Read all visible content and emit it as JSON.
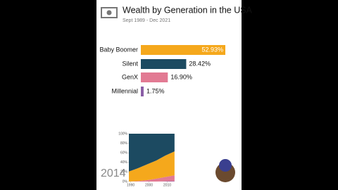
{
  "header": {
    "title": "Wealth by Generation in the USA",
    "subtitle": "Sept 1989 - Dec 2021"
  },
  "year": "2014",
  "chart_data": [
    {
      "type": "hbar",
      "categories": [
        "Baby Boomer",
        "Silent",
        "GenX",
        "Millennial"
      ],
      "values": [
        52.93,
        28.42,
        16.9,
        1.75
      ],
      "value_labels": [
        "52.93%",
        "28.42%",
        "16.90%",
        "1.75%"
      ],
      "colors": [
        "#f5a81c",
        "#1c4a61",
        "#e27a93",
        "#8a5ea6"
      ]
    },
    {
      "type": "stacked-area",
      "x": [
        1989,
        1994,
        1999,
        2004,
        2009,
        2014
      ],
      "series": [
        {
          "color": "#8a5ea6",
          "values": [
            0,
            0,
            0,
            0,
            0.5,
            1
          ]
        },
        {
          "color": "#e27a93",
          "values": [
            0,
            1,
            3,
            6,
            9,
            12
          ]
        },
        {
          "color": "#f5a81c",
          "values": [
            21,
            27,
            33,
            38,
            45,
            50
          ]
        },
        {
          "color": "#1c4a61",
          "values": [
            79,
            72,
            64,
            56,
            45.5,
            37
          ]
        }
      ],
      "xlim": [
        1989,
        2021
      ],
      "ylim": [
        0,
        100
      ],
      "xticks": [
        1990,
        2000,
        2010
      ],
      "yticks": [
        {
          "value": 0,
          "label": "0%"
        },
        {
          "value": 20,
          "label": "20%"
        },
        {
          "value": 40,
          "label": "40%"
        },
        {
          "value": 60,
          "label": "60%"
        },
        {
          "value": 80,
          "label": "80%"
        },
        {
          "value": 100,
          "label": "100%"
        }
      ]
    }
  ]
}
